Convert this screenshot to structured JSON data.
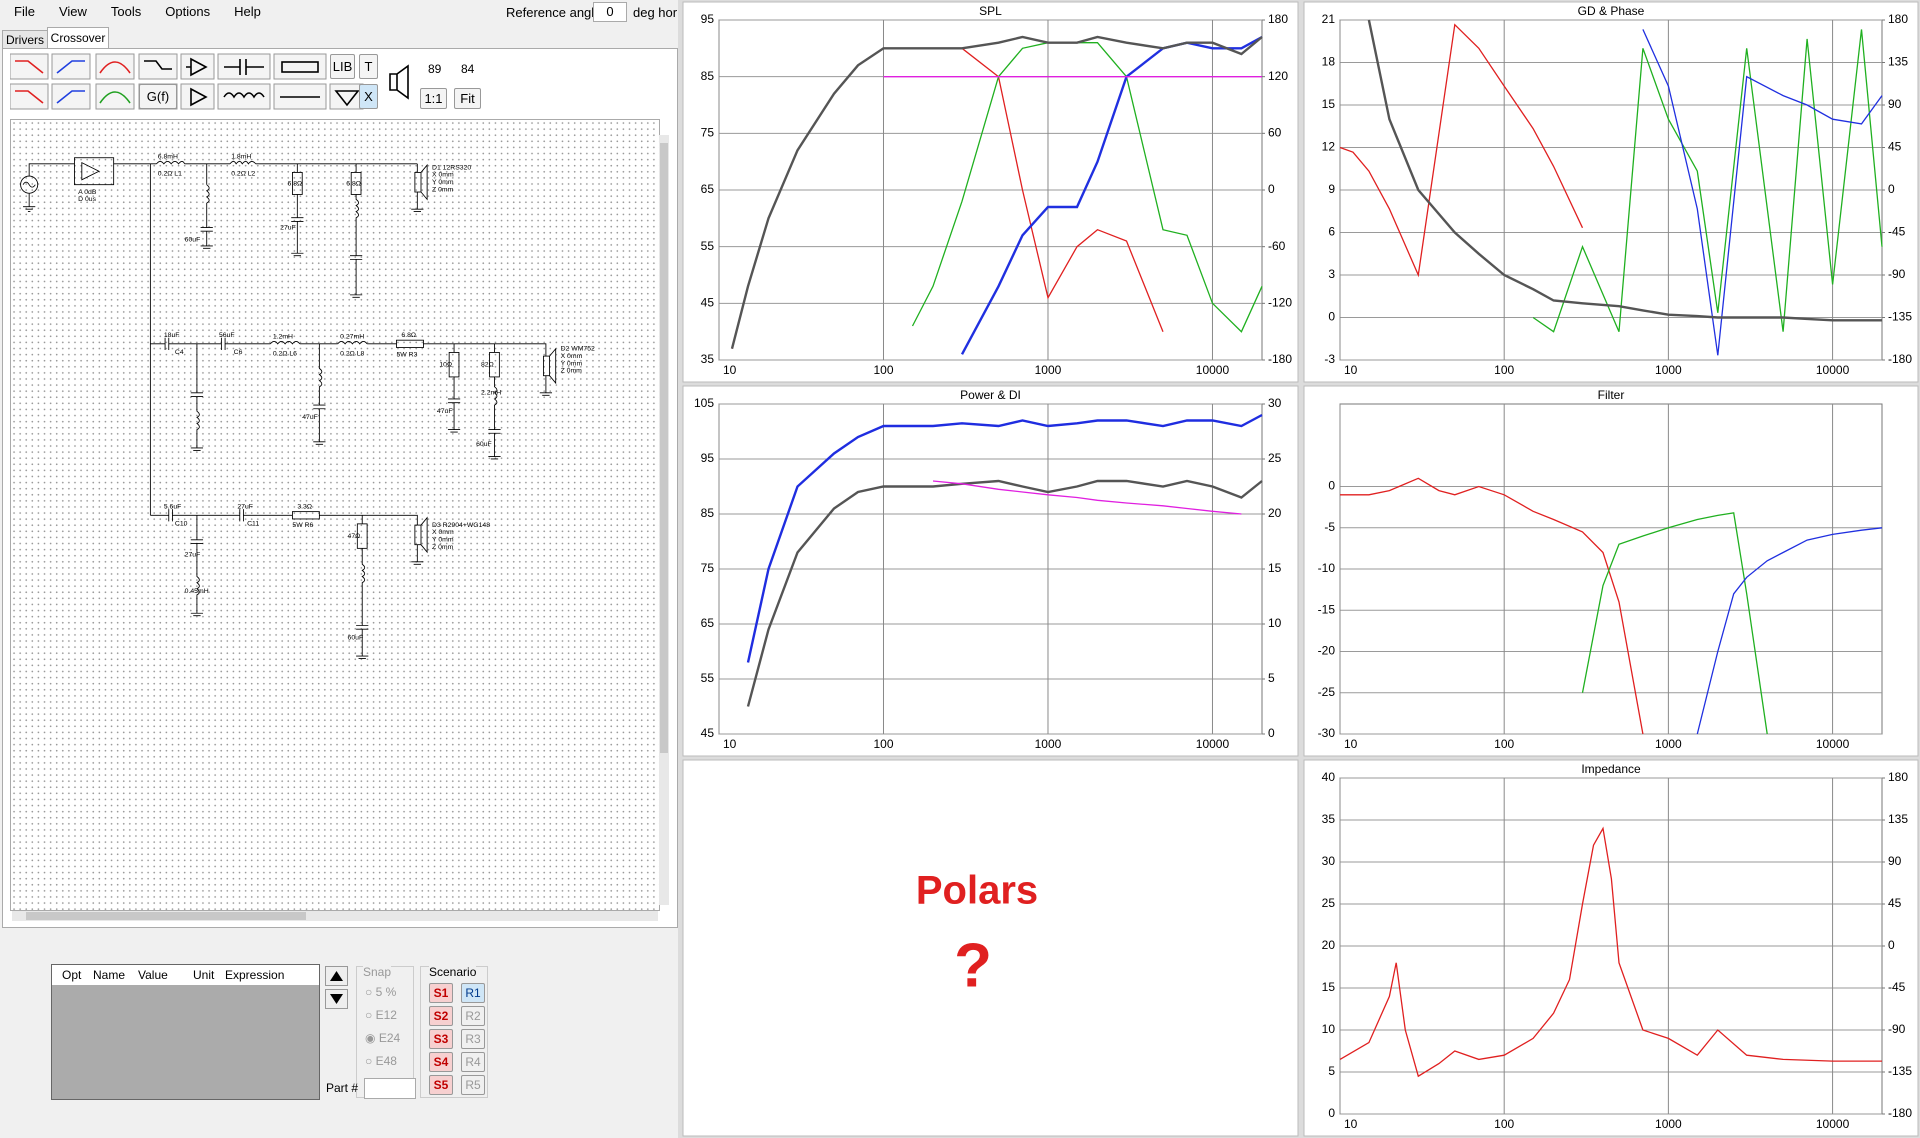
{
  "menu": [
    "File",
    "View",
    "Tools",
    "Options",
    "Help"
  ],
  "reference": {
    "label": "Reference angle",
    "value": 0,
    "unit": "deg hor"
  },
  "tabs": [
    "Drivers",
    "Crossover"
  ],
  "toolbar": {
    "buttons": [
      "G(f)",
      "LIB",
      "T",
      "X",
      "1:1",
      "Fit"
    ],
    "levels": [
      89,
      84
    ]
  },
  "schematic": {
    "labels": [
      "6.8mH",
      "0.2Ω L1",
      "1.8mH",
      "0.2Ω L2",
      "D1 12RS320",
      "X 0mm",
      "Y 0mm",
      "Z 0mm",
      "18uF",
      "C4",
      "56uF",
      "C6",
      "1.2mH",
      "0.2Ω L6",
      "0.27mH",
      "0.2Ω L8",
      "6.8Ω",
      "5W R3",
      "D2 WM752",
      "X 0mm",
      "Y 0mm",
      "Z 0mm",
      "5.6uF",
      "C10",
      "27uF",
      "C11",
      "3.3Ω",
      "5W R6",
      "D3 R2904+WG148",
      "X 0mm",
      "Y 0mm",
      "Z 0mm",
      "A 0dB",
      "D 0us",
      "6.8Ω",
      "6.8Ω",
      "10Ω",
      "82Ω",
      "47Ω",
      "60uF",
      "27uF",
      "47uF",
      "47uF",
      "60uF",
      "27uF",
      "60uF",
      "0.45mH",
      "2.2mH"
    ]
  },
  "parts_table": {
    "columns": [
      "Opt",
      "Name",
      "Value",
      "Unit",
      "Expression"
    ]
  },
  "snap": {
    "title": "Snap",
    "options": [
      "5 %",
      "E12",
      "E24",
      "E48"
    ]
  },
  "scenario": {
    "title": "Scenario",
    "saves": [
      "S1",
      "S2",
      "S3",
      "S4",
      "S5"
    ],
    "recalls": [
      "R1",
      "R2",
      "R3",
      "R4",
      "R5"
    ]
  },
  "part_number_label": "Part #",
  "polars": {
    "title": "Polars",
    "mark": "?"
  },
  "chart_data": [
    {
      "type": "line",
      "title": "SPL",
      "xscale": "log",
      "grid": true,
      "xlim": [
        10,
        20000
      ],
      "xticks": [
        10,
        100,
        1000,
        10000
      ],
      "ylim": [
        35,
        95
      ],
      "yticks": [
        35,
        45,
        55,
        65,
        75,
        85,
        95
      ],
      "y2lim": [
        -180,
        180
      ],
      "y2ticks": [
        -180,
        -120,
        -60,
        0,
        60,
        120,
        180
      ],
      "x": [
        10,
        12,
        15,
        20,
        30,
        50,
        70,
        100,
        150,
        200,
        300,
        500,
        700,
        1000,
        1500,
        2000,
        3000,
        5000,
        7000,
        10000,
        15000,
        20000
      ],
      "series": [
        {
          "color": "#e02020",
          "values": [
            null,
            37,
            48,
            60,
            72,
            82,
            87,
            90,
            90,
            90,
            90,
            85,
            65,
            46,
            55,
            58,
            56,
            40,
            null,
            null,
            null,
            null
          ]
        },
        {
          "color": "#20b020",
          "values": [
            null,
            null,
            null,
            null,
            null,
            null,
            null,
            null,
            41,
            48,
            63,
            85,
            90,
            91,
            91,
            91,
            85,
            58,
            57,
            45,
            40,
            48
          ]
        },
        {
          "color": "#2030e0",
          "values": [
            null,
            null,
            null,
            null,
            null,
            null,
            null,
            null,
            null,
            null,
            36,
            48,
            57,
            62,
            62,
            70,
            85,
            90,
            91,
            90,
            90,
            92
          ]
        },
        {
          "color": "#e020e0",
          "values": [
            null,
            null,
            null,
            null,
            null,
            null,
            null,
            85,
            85,
            85,
            85,
            85,
            85,
            85,
            85,
            85,
            85,
            85,
            85,
            85,
            85,
            85
          ]
        },
        {
          "color": "#555555",
          "values": [
            null,
            37,
            48,
            60,
            72,
            82,
            87,
            90,
            90,
            90,
            90,
            91,
            92,
            91,
            91,
            92,
            91,
            90,
            91,
            91,
            89,
            92
          ]
        }
      ]
    },
    {
      "type": "line",
      "title": "GD & Phase",
      "xscale": "log",
      "grid": true,
      "xlim": [
        10,
        20000
      ],
      "xticks": [
        10,
        100,
        1000,
        10000
      ],
      "ylim": [
        -3,
        21
      ],
      "yticks": [
        -3,
        0,
        3,
        6,
        9,
        12,
        15,
        18,
        21
      ],
      "y2lim": [
        -180,
        180
      ],
      "y2ticks": [
        -180,
        -135,
        -90,
        -45,
        0,
        45,
        90,
        135,
        180
      ],
      "x": [
        10,
        12,
        15,
        20,
        30,
        50,
        70,
        100,
        150,
        200,
        300,
        500,
        700,
        1000,
        1500,
        2000,
        3000,
        5000,
        7000,
        10000,
        15000,
        20000
      ],
      "series": [
        {
          "color": "#e02020",
          "axis": "y2",
          "values": [
            45,
            40,
            20,
            -20,
            -90,
            175,
            150,
            110,
            65,
            25,
            -40,
            null,
            135,
            null,
            null,
            null,
            null,
            null,
            null,
            null,
            null,
            null
          ]
        },
        {
          "color": "#20b020",
          "axis": "y2",
          "values": [
            null,
            null,
            null,
            null,
            null,
            null,
            null,
            null,
            -135,
            -150,
            -60,
            -150,
            150,
            75,
            20,
            -130,
            150,
            -150,
            160,
            -100,
            170,
            -60
          ]
        },
        {
          "color": "#2030e0",
          "axis": "y2",
          "values": [
            null,
            null,
            null,
            null,
            null,
            null,
            null,
            null,
            null,
            null,
            null,
            null,
            170,
            110,
            -20,
            -175,
            120,
            100,
            90,
            75,
            70,
            100
          ]
        },
        {
          "color": "#555555",
          "values": [
            null,
            null,
            21,
            14,
            9,
            6,
            4.5,
            3,
            2,
            1.2,
            1,
            0.8,
            0.5,
            0.2,
            0.1,
            0,
            0,
            0,
            -0.1,
            -0.2,
            -0.2,
            -0.2
          ]
        }
      ]
    },
    {
      "type": "line",
      "title": "Power & DI",
      "xscale": "log",
      "grid": true,
      "xlim": [
        10,
        20000
      ],
      "xticks": [
        10,
        100,
        1000,
        10000
      ],
      "ylim": [
        45,
        105
      ],
      "yticks": [
        45,
        55,
        65,
        75,
        85,
        95,
        105
      ],
      "y2lim": [
        0,
        30
      ],
      "y2ticks": [
        0,
        5,
        10,
        15,
        20,
        25,
        30
      ],
      "x": [
        10,
        12,
        15,
        20,
        30,
        50,
        70,
        100,
        150,
        200,
        300,
        500,
        700,
        1000,
        1500,
        2000,
        3000,
        5000,
        7000,
        10000,
        15000,
        20000
      ],
      "series": [
        {
          "color": "#1f2de0",
          "values": [
            null,
            null,
            58,
            75,
            90,
            96,
            99,
            101,
            101,
            101,
            101.5,
            101,
            102,
            101,
            101.5,
            102,
            102,
            101,
            102,
            102,
            101,
            103
          ]
        },
        {
          "color": "#555555",
          "values": [
            null,
            null,
            50,
            64,
            78,
            86,
            89,
            90,
            90,
            90,
            90.5,
            91,
            90,
            89,
            90,
            91,
            91,
            90,
            91,
            90,
            88,
            91
          ]
        },
        {
          "color": "#e020e0",
          "values": [
            null,
            null,
            null,
            null,
            null,
            null,
            null,
            null,
            null,
            91,
            90.5,
            89.5,
            89,
            88.5,
            88,
            87.5,
            87,
            86.5,
            86,
            85.5,
            85,
            null
          ]
        }
      ]
    },
    {
      "type": "line",
      "title": "Filter",
      "xscale": "log",
      "grid": true,
      "xlim": [
        10,
        20000
      ],
      "xticks": [
        10,
        100,
        1000,
        10000
      ],
      "ylim": [
        -30,
        10
      ],
      "yticks": [
        -30,
        -25,
        -20,
        -15,
        -10,
        -5,
        0
      ],
      "x": [
        10,
        15,
        20,
        30,
        40,
        50,
        70,
        100,
        150,
        200,
        300,
        400,
        500,
        700,
        1000,
        1500,
        2000,
        2500,
        3000,
        4000,
        5000,
        7000,
        10000,
        15000,
        20000
      ],
      "series": [
        {
          "color": "#e02020",
          "values": [
            -1,
            -1,
            -0.5,
            1,
            -0.5,
            -1,
            0,
            -1,
            -3,
            -4,
            -5.5,
            -8,
            -14,
            -30,
            null,
            null,
            null,
            null,
            null,
            null,
            null,
            null,
            null,
            null,
            null
          ]
        },
        {
          "color": "#20b020",
          "values": [
            null,
            null,
            null,
            null,
            null,
            null,
            null,
            null,
            null,
            null,
            -25,
            -12,
            -7,
            -6,
            -5,
            -4,
            -3.5,
            -3.2,
            -13,
            -30,
            null,
            null,
            null,
            null,
            null
          ]
        },
        {
          "color": "#2030e0",
          "values": [
            null,
            null,
            null,
            null,
            null,
            null,
            null,
            null,
            null,
            null,
            null,
            null,
            null,
            null,
            null,
            -30,
            -20,
            -13,
            -11,
            -9,
            -8,
            -6.5,
            -5.8,
            -5.3,
            -5
          ]
        }
      ]
    },
    {
      "type": "line",
      "title": "Impedance",
      "xscale": "log",
      "grid": true,
      "xlim": [
        10,
        20000
      ],
      "xticks": [
        10,
        100,
        1000,
        10000
      ],
      "ylim": [
        0,
        40
      ],
      "yticks": [
        0,
        5,
        10,
        15,
        20,
        25,
        30,
        35,
        40
      ],
      "y2lim": [
        -180,
        180
      ],
      "y2ticks": [
        -180,
        -135,
        -90,
        -45,
        0,
        45,
        90,
        135,
        180
      ],
      "x": [
        10,
        15,
        20,
        22,
        25,
        30,
        40,
        50,
        70,
        100,
        150,
        200,
        250,
        300,
        350,
        400,
        450,
        500,
        700,
        1000,
        1500,
        2000,
        3000,
        5000,
        10000,
        20000
      ],
      "series": [
        {
          "color": "#e02020",
          "values": [
            6.5,
            8.5,
            14,
            18,
            10,
            4.5,
            6,
            7.5,
            6.5,
            7,
            9,
            12,
            16,
            25,
            32,
            34,
            28,
            18,
            10,
            9,
            7,
            10,
            7,
            6.5,
            6.3,
            6.3
          ]
        }
      ]
    }
  ]
}
